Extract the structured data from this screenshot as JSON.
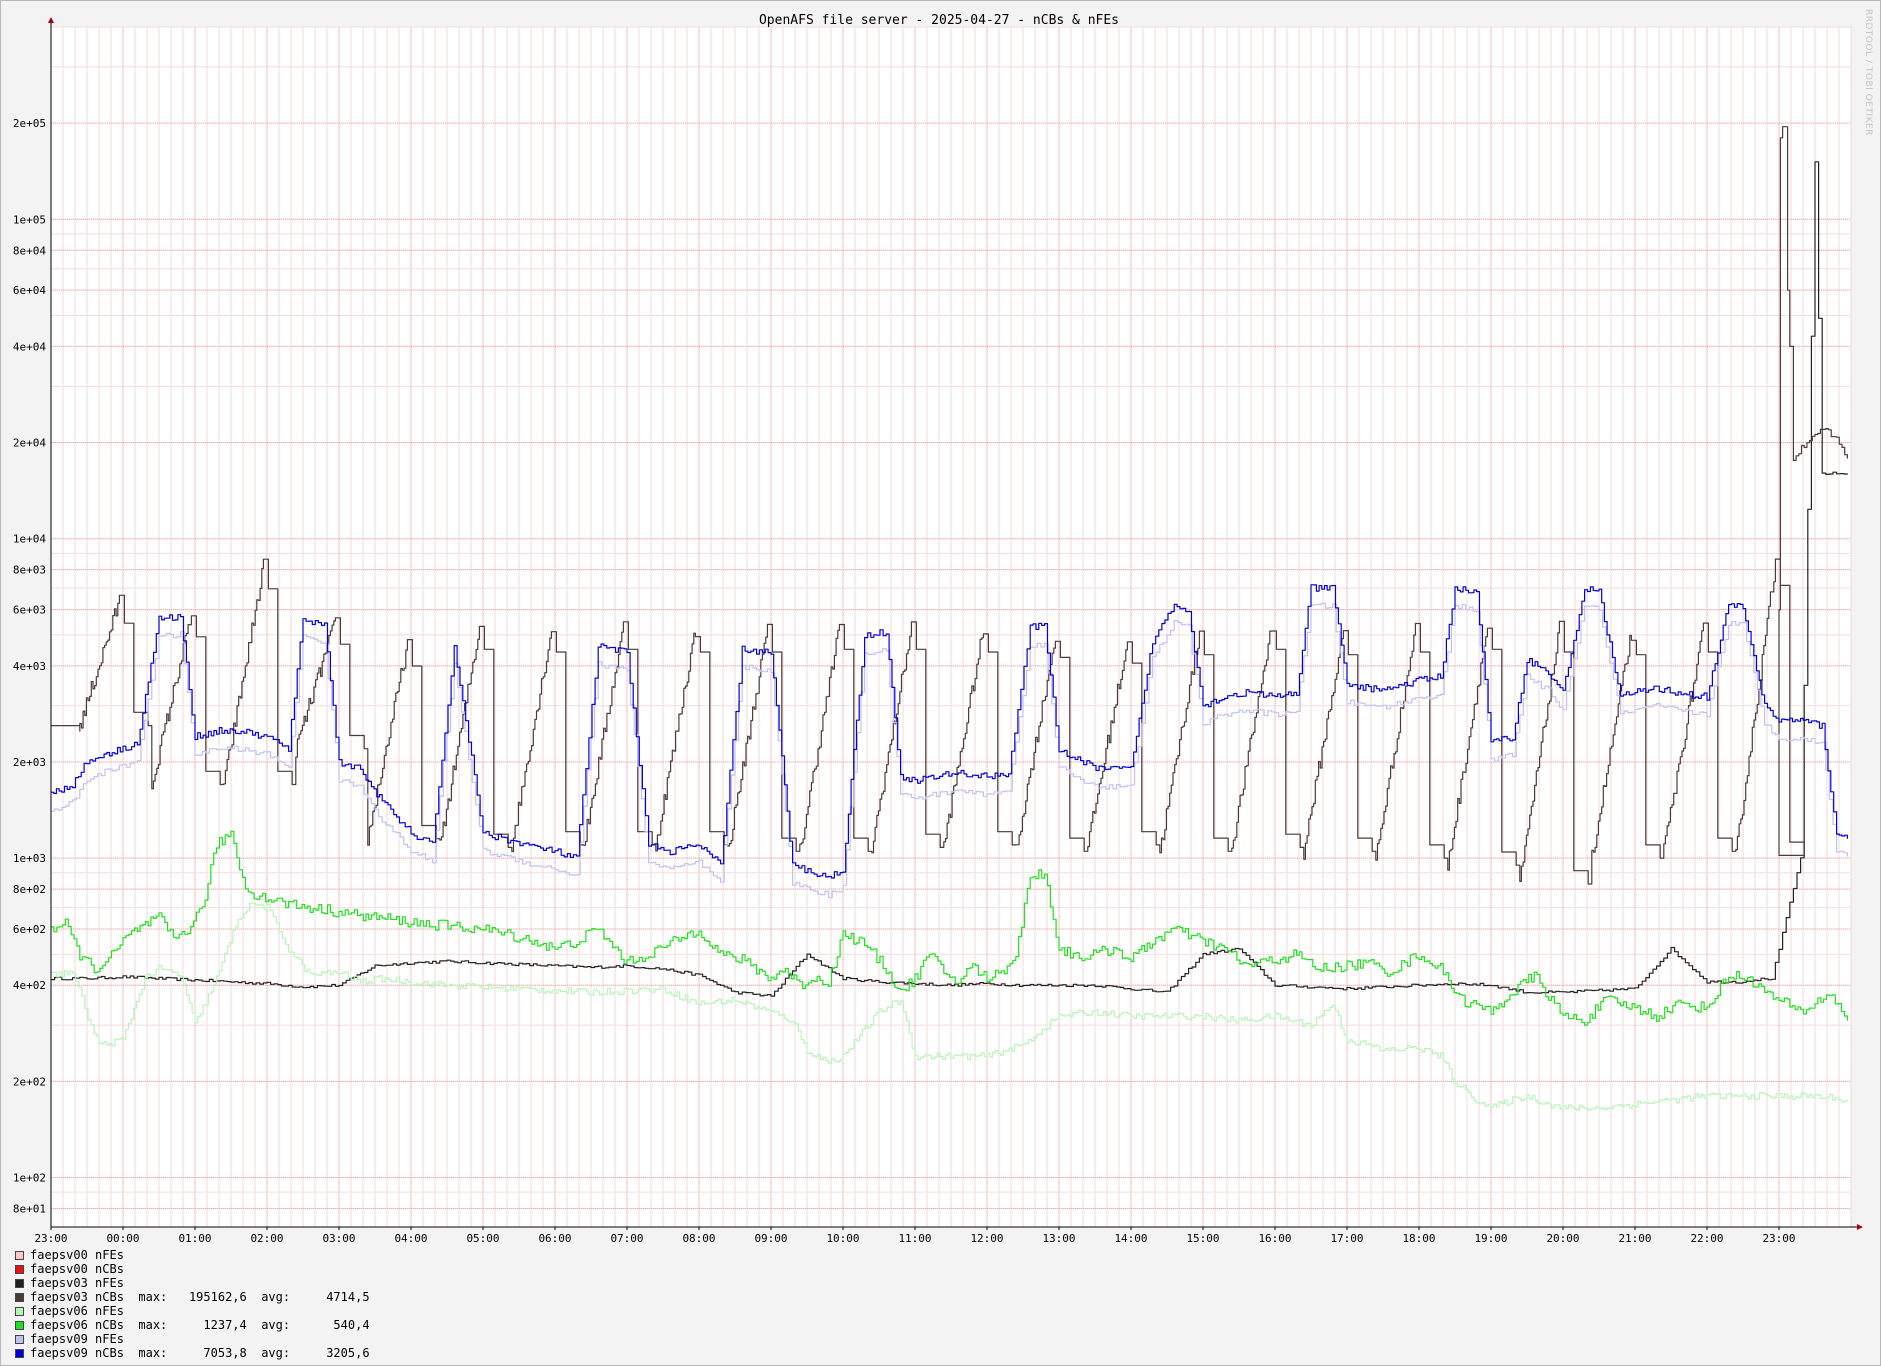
{
  "chart_data": {
    "type": "line",
    "title": "OpenAFS file server - 2025-04-27 - nCBs & nFEs",
    "watermark": "RRDTOOL / TOBI OETIKER",
    "xlabel": "",
    "ylabel": "",
    "y_scale": "log",
    "ylim": [
      70,
      400000
    ],
    "y_ticks": [
      {
        "v": 80,
        "label": "8e+01"
      },
      {
        "v": 100,
        "label": "1e+02"
      },
      {
        "v": 200,
        "label": "2e+02"
      },
      {
        "v": 400,
        "label": "4e+02"
      },
      {
        "v": 600,
        "label": "6e+02"
      },
      {
        "v": 800,
        "label": "8e+02"
      },
      {
        "v": 1000,
        "label": "1e+03"
      },
      {
        "v": 2000,
        "label": "2e+03"
      },
      {
        "v": 4000,
        "label": "4e+03"
      },
      {
        "v": 6000,
        "label": "6e+03"
      },
      {
        "v": 8000,
        "label": "8e+03"
      },
      {
        "v": 10000,
        "label": "1e+04"
      },
      {
        "v": 20000,
        "label": "2e+04"
      },
      {
        "v": 40000,
        "label": "4e+04"
      },
      {
        "v": 60000,
        "label": "6e+04"
      },
      {
        "v": 80000,
        "label": "8e+04"
      },
      {
        "v": 100000,
        "label": "1e+05"
      },
      {
        "v": 200000,
        "label": "2e+05"
      }
    ],
    "x_hours": [
      -1,
      24
    ],
    "x_ticks": [
      "23:00",
      "00:00",
      "01:00",
      "02:00",
      "03:00",
      "04:00",
      "05:00",
      "06:00",
      "07:00",
      "08:00",
      "09:00",
      "10:00",
      "11:00",
      "12:00",
      "13:00",
      "14:00",
      "15:00",
      "16:00",
      "17:00",
      "18:00",
      "19:00",
      "20:00",
      "21:00",
      "22:00",
      "23:00"
    ],
    "grid": true,
    "series": [
      {
        "name": "faepsv00 nFEs",
        "color": "#f7c9c9",
        "style": "none",
        "values": []
      },
      {
        "name": "faepsv00 nCBs",
        "color": "#ee1111",
        "style": "none",
        "values": []
      },
      {
        "name": "faepsv03 nFEs",
        "color": "#222222",
        "style": "nfe03",
        "x": [
          -1.0,
          -0.5,
          0.0,
          0.5,
          1.0,
          1.5,
          2.0,
          2.5,
          3.0,
          3.5,
          4.0,
          4.5,
          5.0,
          5.5,
          6.0,
          6.5,
          7.0,
          7.5,
          8.0,
          8.5,
          9.0,
          9.5,
          10.0,
          10.5,
          11.0,
          11.5,
          12.0,
          12.5,
          13.0,
          13.5,
          14.0,
          14.5,
          15.0,
          15.5,
          16.0,
          16.5,
          17.0,
          17.5,
          18.0,
          18.5,
          19.0,
          19.5,
          20.0,
          20.5,
          21.0,
          21.5,
          22.0,
          22.5,
          22.6,
          22.9,
          23.0,
          23.3,
          23.5,
          23.6,
          23.95
        ],
        "values": [
          420,
          420,
          425,
          420,
          415,
          410,
          405,
          395,
          400,
          460,
          470,
          475,
          470,
          465,
          460,
          455,
          460,
          450,
          430,
          380,
          370,
          500,
          420,
          410,
          405,
          400,
          405,
          400,
          400,
          400,
          390,
          380,
          500,
          520,
          400,
          395,
          390,
          395,
          400,
          405,
          400,
          380,
          380,
          385,
          390,
          520,
          410,
          410,
          415,
          420,
          520,
          1000,
          150000,
          16000,
          16000
        ]
      },
      {
        "name": "faepsv03 nCBs",
        "color": "#4a3a3a",
        "max": "195162,6",
        "avg": "4714,5",
        "style": "ncb03",
        "values": []
      },
      {
        "name": "faepsv06 nFEs",
        "color": "#b8f5b8",
        "style": "nfe06",
        "x": [
          -1.0,
          -0.7,
          -0.4,
          -0.3,
          0.0,
          0.3,
          0.5,
          0.8,
          1.0,
          1.3,
          1.6,
          1.8,
          2.0,
          2.3,
          2.6,
          3.0,
          3.3,
          3.6,
          4.0,
          4.5,
          5.0,
          5.5,
          6.0,
          6.5,
          7.0,
          7.5,
          8.0,
          8.5,
          9.0,
          9.3,
          9.5,
          9.8,
          10.0,
          10.5,
          10.8,
          11.0,
          11.5,
          12.0,
          12.5,
          13.0,
          13.5,
          14.0,
          14.5,
          15.0,
          15.5,
          16.0,
          16.5,
          16.8,
          17.0,
          17.3,
          17.5,
          18.0,
          18.3,
          18.5,
          18.8,
          19.0,
          19.3,
          19.5,
          19.8,
          20.0,
          20.5,
          21.0,
          21.5,
          22.0,
          22.5,
          23.0,
          23.5,
          23.95
        ],
        "values": [
          430,
          440,
          280,
          260,
          270,
          420,
          450,
          430,
          300,
          420,
          650,
          720,
          700,
          520,
          430,
          440,
          410,
          420,
          410,
          400,
          395,
          390,
          385,
          380,
          385,
          390,
          350,
          360,
          330,
          310,
          250,
          230,
          240,
          330,
          360,
          240,
          240,
          240,
          260,
          320,
          330,
          320,
          320,
          320,
          310,
          320,
          300,
          350,
          270,
          260,
          250,
          255,
          240,
          200,
          175,
          165,
          175,
          180,
          170,
          165,
          165,
          170,
          175,
          180,
          180,
          180,
          180,
          175
        ]
      },
      {
        "name": "faepsv06 nCBs",
        "color": "#1ee01e",
        "max": "1237,4",
        "avg": "540,4",
        "style": "ncb06",
        "x": [
          -1.0,
          -0.8,
          -0.6,
          -0.4,
          -0.2,
          0.0,
          0.2,
          0.5,
          0.7,
          0.9,
          1.1,
          1.3,
          1.5,
          1.7,
          1.9,
          2.1,
          2.3,
          2.6,
          3.0,
          3.3,
          3.6,
          4.0,
          4.3,
          4.6,
          5.0,
          5.3,
          5.6,
          6.0,
          6.3,
          6.6,
          7.0,
          7.3,
          7.6,
          8.0,
          8.3,
          8.6,
          9.0,
          9.2,
          9.4,
          9.6,
          9.8,
          10.0,
          10.3,
          10.6,
          10.8,
          11.0,
          11.2,
          11.4,
          11.6,
          11.8,
          12.0,
          12.2,
          12.4,
          12.6,
          12.8,
          13.0,
          13.2,
          13.4,
          13.6,
          13.8,
          14.0,
          14.3,
          14.6,
          15.0,
          15.3,
          15.6,
          16.0,
          16.3,
          16.6,
          17.0,
          17.3,
          17.6,
          18.0,
          18.3,
          18.6,
          19.0,
          19.3,
          19.6,
          20.0,
          20.3,
          20.6,
          21.0,
          21.3,
          21.6,
          22.0,
          22.3,
          22.6,
          22.8,
          23.0,
          23.3,
          23.5,
          23.7,
          23.95
        ],
        "values": [
          600,
          620,
          500,
          450,
          480,
          550,
          600,
          650,
          560,
          600,
          700,
          1100,
          1200,
          800,
          760,
          740,
          720,
          700,
          680,
          660,
          650,
          630,
          620,
          610,
          600,
          580,
          560,
          520,
          550,
          600,
          470,
          500,
          540,
          600,
          500,
          480,
          420,
          450,
          400,
          420,
          410,
          580,
          540,
          450,
          380,
          420,
          500,
          440,
          410,
          460,
          420,
          440,
          500,
          880,
          900,
          520,
          500,
          490,
          510,
          520,
          480,
          550,
          600,
          550,
          520,
          460,
          480,
          500,
          450,
          460,
          470,
          440,
          500,
          450,
          360,
          330,
          380,
          430,
          320,
          310,
          360,
          340,
          320,
          350,
          340,
          430,
          420,
          380,
          360,
          330,
          350,
          380,
          310
        ]
      },
      {
        "name": "faepsv09 nFEs",
        "color": "#c2c2f2",
        "style": "nfe09",
        "values": []
      },
      {
        "name": "faepsv09 nCBs",
        "color": "#0000dd",
        "max": "7053,8",
        "avg": "3205,6",
        "style": "ncb09",
        "x": [
          -1.0,
          -0.7,
          -0.5,
          -0.3,
          0.0,
          0.2,
          0.5,
          0.8,
          1.0,
          1.3,
          1.6,
          2.0,
          2.3,
          2.5,
          2.8,
          3.0,
          3.3,
          3.6,
          4.0,
          4.3,
          4.6,
          5.0,
          5.3,
          5.6,
          6.0,
          6.3,
          6.6,
          7.0,
          7.3,
          7.6,
          8.0,
          8.3,
          8.6,
          9.0,
          9.3,
          9.6,
          9.8,
          10.0,
          10.3,
          10.6,
          10.8,
          11.0,
          11.3,
          11.6,
          12.0,
          12.3,
          12.6,
          12.8,
          13.0,
          13.3,
          13.6,
          13.8,
          14.0,
          14.3,
          14.6,
          14.8,
          15.0,
          15.3,
          15.6,
          16.0,
          16.3,
          16.5,
          16.8,
          17.0,
          17.3,
          17.6,
          18.0,
          18.3,
          18.5,
          18.8,
          19.0,
          19.3,
          19.5,
          19.8,
          20.0,
          20.3,
          20.5,
          20.8,
          21.0,
          21.3,
          21.6,
          22.0,
          22.3,
          22.5,
          22.8,
          23.0,
          23.3,
          23.6,
          23.8,
          23.95
        ],
        "values": [
          1600,
          1700,
          2000,
          2100,
          2200,
          2300,
          5600,
          5700,
          2400,
          2500,
          2500,
          2400,
          2200,
          5600,
          5400,
          2000,
          1900,
          1500,
          1200,
          1100,
          4600,
          1200,
          1150,
          1100,
          1050,
          1000,
          4600,
          4400,
          1100,
          1050,
          1100,
          950,
          4500,
          4400,
          950,
          900,
          870,
          920,
          5000,
          5100,
          1800,
          1750,
          1800,
          1850,
          1800,
          1850,
          5300,
          5300,
          2200,
          2000,
          1900,
          1900,
          1900,
          4800,
          6200,
          6000,
          3000,
          3200,
          3300,
          3200,
          3300,
          7000,
          7000,
          3500,
          3400,
          3400,
          3600,
          3700,
          7000,
          6800,
          2300,
          2400,
          4200,
          3800,
          3300,
          7000,
          6800,
          3200,
          3300,
          3400,
          3300,
          3200,
          6200,
          6100,
          3000,
          2700,
          2700,
          2600,
          1200,
          1150
        ]
      }
    ]
  }
}
